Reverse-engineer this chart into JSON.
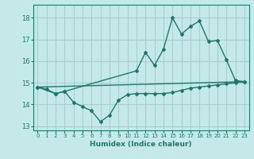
{
  "title": "",
  "xlabel": "Humidex (Indice chaleur)",
  "bg_color": "#c5e8e8",
  "grid_color": "#a8d0d0",
  "line_color": "#1a7a6a",
  "xlim": [
    -0.5,
    23.5
  ],
  "ylim": [
    12.8,
    18.6
  ],
  "yticks": [
    13,
    14,
    15,
    16,
    17,
    18
  ],
  "xticks": [
    0,
    1,
    2,
    3,
    4,
    5,
    6,
    7,
    8,
    9,
    10,
    11,
    12,
    13,
    14,
    15,
    16,
    17,
    18,
    19,
    20,
    21,
    22,
    23
  ],
  "series1_x": [
    0,
    1,
    2,
    3,
    4,
    5,
    6,
    7,
    8,
    9,
    10,
    11,
    12,
    13,
    14,
    15,
    16,
    17,
    18,
    19,
    20,
    21,
    22,
    23
  ],
  "series1_y": [
    14.8,
    14.7,
    14.5,
    14.6,
    14.1,
    13.9,
    13.7,
    13.2,
    13.5,
    14.2,
    14.45,
    14.5,
    14.5,
    14.5,
    14.5,
    14.55,
    14.65,
    14.75,
    14.8,
    14.85,
    14.9,
    14.95,
    15.0,
    15.05
  ],
  "series2_x": [
    0,
    2,
    3,
    11,
    12,
    13,
    14,
    15,
    16,
    17,
    18,
    19,
    20,
    21,
    22,
    23
  ],
  "series2_y": [
    14.8,
    14.5,
    14.6,
    15.55,
    16.4,
    15.8,
    16.55,
    18.0,
    17.25,
    17.6,
    17.85,
    16.9,
    16.95,
    16.05,
    15.1,
    15.05
  ],
  "series3_x": [
    0,
    23
  ],
  "series3_y": [
    14.8,
    15.05
  ]
}
